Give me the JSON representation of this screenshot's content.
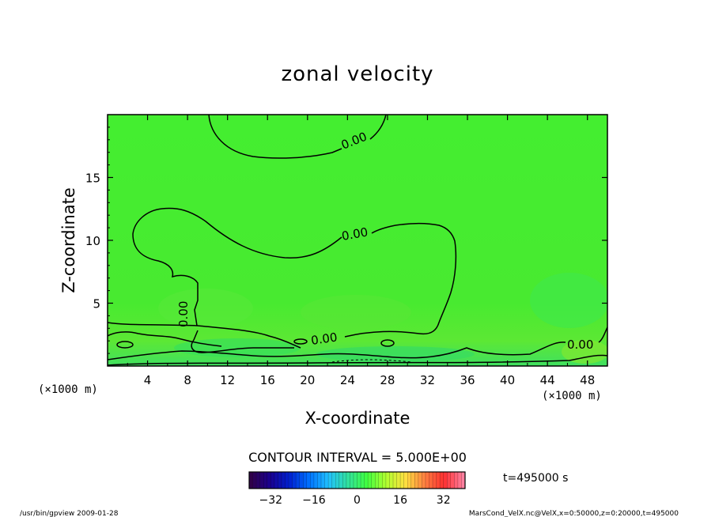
{
  "chart_data": {
    "type": "heatmap",
    "title": "zonal velocity",
    "xlabel": "X-coordinate",
    "ylabel": "Z-coordinate",
    "x_unit_label": "(×1000 m)",
    "xlim": [
      0,
      50
    ],
    "ylim": [
      0,
      20
    ],
    "x_ticks": [
      4,
      8,
      12,
      16,
      20,
      24,
      28,
      32,
      36,
      40,
      44,
      48
    ],
    "y_ticks": [
      5,
      10,
      15
    ],
    "contour_interval_text": "CONTOUR INTERVAL = 5.000E+00",
    "contour_label": "0.00",
    "contour_level": 0,
    "colorbar": {
      "range": [
        -40,
        40
      ],
      "ticks": [
        -32,
        -16,
        0,
        16,
        32
      ],
      "colors": [
        "#30004a",
        "#1a0090",
        "#0020d0",
        "#0070ff",
        "#20c0ff",
        "#30e0a0",
        "#40ff40",
        "#b0ff30",
        "#ffe040",
        "#ff8040",
        "#ff3030",
        "#ff80a0"
      ]
    },
    "field_color": "#44ee30",
    "time_label": "t=495000 s"
  },
  "footer": {
    "left": "/usr/bin/gpview  2009-01-28",
    "right": "MarsCond_VelX.nc@VelX,x=0:50000,z=0:20000,t=495000"
  }
}
